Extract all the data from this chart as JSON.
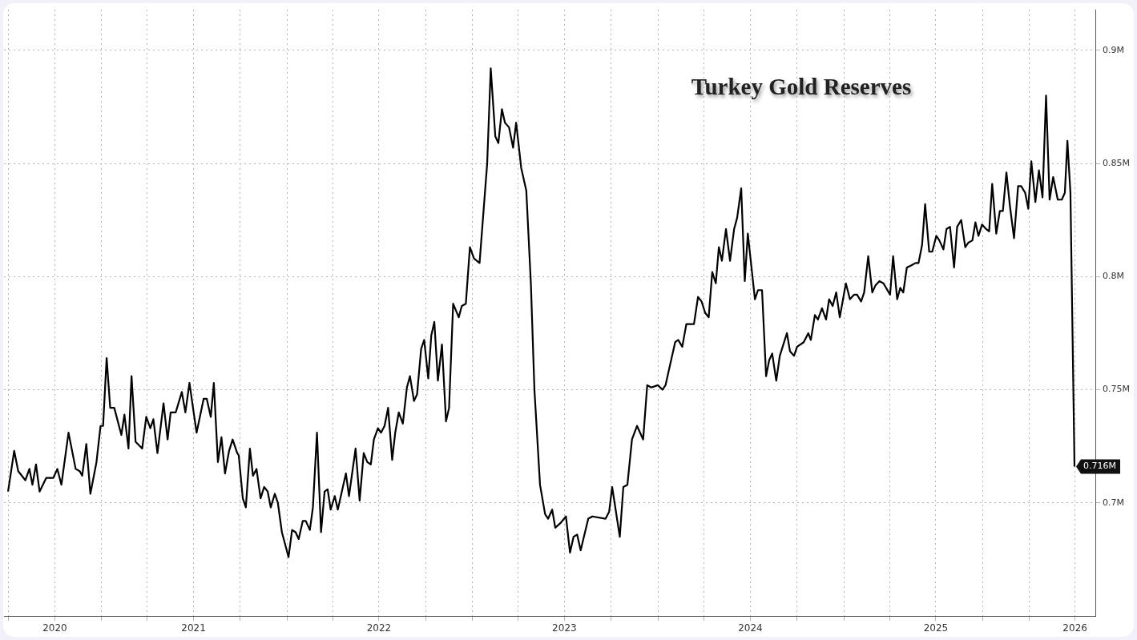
{
  "chart_data": {
    "type": "line",
    "title": "Turkey Gold Reserves",
    "x": [
      "2020-07-01",
      "2020-07-13",
      "2020-07-21",
      "2020-08-04",
      "2020-08-12",
      "2020-08-18",
      "2020-08-25",
      "2020-09-01",
      "2020-09-14",
      "2020-09-28",
      "2020-10-06",
      "2020-10-14",
      "2020-10-28",
      "2020-11-11",
      "2020-11-19",
      "2020-11-24",
      "2020-12-02",
      "2020-12-10",
      "2020-12-22",
      "2020-12-30",
      "2021-01-04",
      "2021-01-11",
      "2021-01-18",
      "2021-01-26",
      "2021-02-09",
      "2021-02-15",
      "2021-02-23",
      "2021-03-01",
      "2021-03-09",
      "2021-03-22",
      "2021-03-30",
      "2021-04-07",
      "2021-04-13",
      "2021-04-21",
      "2021-05-03",
      "2021-05-11",
      "2021-05-17",
      "2021-05-27",
      "2021-06-08",
      "2021-06-15",
      "2021-06-23",
      "2021-07-07",
      "2021-07-21",
      "2021-07-27",
      "2021-08-04",
      "2021-08-10",
      "2021-08-18",
      "2021-08-25",
      "2021-09-01",
      "2021-09-09",
      "2021-09-16",
      "2021-09-25",
      "2021-09-28",
      "2021-10-06",
      "2021-10-12",
      "2021-10-20",
      "2021-10-26",
      "2021-11-02",
      "2021-11-10",
      "2021-11-17",
      "2021-11-24",
      "2021-11-30",
      "2021-12-08",
      "2021-12-14",
      "2021-12-22",
      "2022-01-04",
      "2022-01-11",
      "2022-01-18",
      "2022-01-24",
      "2022-02-01",
      "2022-02-07",
      "2022-02-15",
      "2022-02-21",
      "2022-03-01",
      "2022-03-09",
      "2022-03-16",
      "2022-03-22",
      "2022-03-28",
      "2022-04-05",
      "2022-04-11",
      "2022-04-27",
      "2022-05-03",
      "2022-05-16",
      "2022-05-24",
      "2022-06-01",
      "2022-06-08",
      "2022-06-15",
      "2022-06-21",
      "2022-06-29",
      "2022-07-05",
      "2022-07-12",
      "2022-07-19",
      "2022-07-27",
      "2022-08-02",
      "2022-08-09",
      "2022-08-17",
      "2022-08-25",
      "2022-08-31",
      "2022-09-08",
      "2022-09-14",
      "2022-09-22",
      "2022-09-28",
      "2022-10-06",
      "2022-10-12",
      "2022-10-18",
      "2022-10-25",
      "2022-11-02",
      "2022-11-10",
      "2022-11-16",
      "2022-11-24",
      "2022-12-05",
      "2022-12-11",
      "2022-12-19",
      "2022-12-27",
      "2023-01-04",
      "2023-01-15",
      "2023-01-30",
      "2023-02-06",
      "2023-02-15",
      "2023-02-21",
      "2023-02-28",
      "2023-03-06",
      "2023-03-14",
      "2023-03-22",
      "2023-03-28",
      "2023-04-07",
      "2023-04-17",
      "2023-04-26",
      "2023-05-03",
      "2023-05-14",
      "2023-05-24",
      "2023-05-30",
      "2023-06-07",
      "2023-06-13",
      "2023-06-23",
      "2023-07-04",
      "2023-07-12",
      "2023-07-19",
      "2023-07-26",
      "2023-08-02",
      "2023-08-17",
      "2023-08-25",
      "2023-09-20",
      "2023-09-27",
      "2023-10-03",
      "2023-10-18",
      "2023-10-25",
      "2023-11-02",
      "2023-11-11",
      "2023-11-21",
      "2023-12-03",
      "2023-12-11",
      "2023-12-19",
      "2024-01-01",
      "2024-01-10",
      "2024-01-16",
      "2024-01-24",
      "2024-02-04",
      "2024-02-10",
      "2024-02-18",
      "2024-02-26",
      "2024-03-12",
      "2024-03-20",
      "2024-03-27",
      "2024-04-03",
      "2024-04-10",
      "2024-04-17",
      "2024-04-24",
      "2024-04-30",
      "2024-05-06",
      "2024-05-14",
      "2024-05-22",
      "2024-05-30",
      "2024-06-05",
      "2024-06-13",
      "2024-06-20",
      "2024-06-26",
      "2024-07-10",
      "2024-07-16",
      "2024-07-24",
      "2024-08-01",
      "2024-08-07",
      "2024-08-13",
      "2024-08-21",
      "2024-08-28",
      "2024-09-11",
      "2024-09-17",
      "2024-09-25",
      "2024-10-01",
      "2024-10-14",
      "2024-10-23",
      "2024-10-28",
      "2024-11-05",
      "2024-11-11",
      "2024-11-19",
      "2024-11-27",
      "2024-12-03",
      "2024-12-10",
      "2024-12-17",
      "2024-12-24",
      "2025-01-05",
      "2025-01-13",
      "2025-01-21",
      "2025-01-27",
      "2025-02-04",
      "2025-02-10",
      "2025-02-18",
      "2025-02-26",
      "2025-03-04",
      "2025-03-12",
      "2025-03-20",
      "2025-04-02",
      "2025-04-08",
      "2025-04-16",
      "2025-04-22",
      "2025-04-28",
      "2025-05-05",
      "2025-05-14",
      "2025-05-22",
      "2025-05-28",
      "2025-06-04",
      "2025-06-10",
      "2025-06-18",
      "2025-06-24",
      "2025-07-02",
      "2025-07-08",
      "2025-07-16",
      "2025-07-22",
      "2025-07-29",
      "2025-08-06",
      "2025-08-12",
      "2025-08-20",
      "2025-08-28",
      "2025-09-03",
      "2025-09-11",
      "2025-09-17",
      "2025-09-23",
      "2025-09-30",
      "2025-10-08",
      "2025-10-14",
      "2025-10-20",
      "2025-10-28",
      "2025-11-04",
      "2025-11-10",
      "2025-11-17",
      "2025-11-24",
      "2025-12-02",
      "2025-12-10",
      "2025-12-16",
      "2025-12-24",
      "2025-12-30",
      "2026-01-05",
      "2026-01-13",
      "2026-01-20",
      "2026-01-27",
      "2026-02-03",
      "2026-02-10",
      "2026-02-17",
      "2026-02-26",
      "2026-03-06",
      "2026-03-12",
      "2026-03-17",
      "2026-03-23",
      "2026-03-31"
    ],
    "series": [
      {
        "color": "#000000",
        "values": [
          0.705,
          0.723,
          0.714,
          0.71,
          0.715,
          0.708,
          0.717,
          0.705,
          0.711,
          0.711,
          0.715,
          0.708,
          0.731,
          0.715,
          0.714,
          0.712,
          0.726,
          0.704,
          0.718,
          0.734,
          0.734,
          0.764,
          0.742,
          0.742,
          0.73,
          0.739,
          0.724,
          0.756,
          0.727,
          0.724,
          0.738,
          0.733,
          0.737,
          0.722,
          0.744,
          0.728,
          0.74,
          0.74,
          0.749,
          0.74,
          0.753,
          0.731,
          0.746,
          0.746,
          0.738,
          0.753,
          0.718,
          0.729,
          0.713,
          0.723,
          0.728,
          0.722,
          0.721,
          0.702,
          0.698,
          0.724,
          0.712,
          0.715,
          0.702,
          0.707,
          0.705,
          0.698,
          0.704,
          0.7,
          0.687,
          0.676,
          0.688,
          0.687,
          0.684,
          0.692,
          0.692,
          0.688,
          0.698,
          0.731,
          0.687,
          0.705,
          0.706,
          0.697,
          0.703,
          0.697,
          0.713,
          0.703,
          0.724,
          0.701,
          0.722,
          0.718,
          0.717,
          0.728,
          0.733,
          0.731,
          0.734,
          0.742,
          0.719,
          0.731,
          0.74,
          0.735,
          0.751,
          0.756,
          0.745,
          0.748,
          0.768,
          0.772,
          0.755,
          0.774,
          0.78,
          0.754,
          0.77,
          0.736,
          0.742,
          0.788,
          0.782,
          0.787,
          0.788,
          0.813,
          0.808,
          0.806,
          0.85,
          0.892,
          0.862,
          0.859,
          0.874,
          0.868,
          0.866,
          0.857,
          0.868,
          0.848,
          0.838,
          0.797,
          0.75,
          0.708,
          0.695,
          0.693,
          0.697,
          0.689,
          0.691,
          0.694,
          0.678,
          0.685,
          0.686,
          0.679,
          0.693,
          0.694,
          0.693,
          0.696,
          0.707,
          0.685,
          0.707,
          0.708,
          0.728,
          0.734,
          0.728,
          0.752,
          0.751,
          0.752,
          0.75,
          0.752,
          0.76,
          0.771,
          0.772,
          0.769,
          0.779,
          0.779,
          0.791,
          0.789,
          0.784,
          0.782,
          0.802,
          0.797,
          0.813,
          0.807,
          0.821,
          0.807,
          0.821,
          0.826,
          0.839,
          0.798,
          0.819,
          0.79,
          0.794,
          0.794,
          0.756,
          0.763,
          0.766,
          0.754,
          0.765,
          0.775,
          0.767,
          0.765,
          0.769,
          0.771,
          0.775,
          0.772,
          0.783,
          0.781,
          0.786,
          0.781,
          0.79,
          0.787,
          0.793,
          0.782,
          0.797,
          0.79,
          0.792,
          0.792,
          0.789,
          0.793,
          0.809,
          0.793,
          0.796,
          0.798,
          0.797,
          0.792,
          0.809,
          0.79,
          0.795,
          0.793,
          0.804,
          0.805,
          0.806,
          0.806,
          0.814,
          0.832,
          0.811,
          0.811,
          0.818,
          0.816,
          0.812,
          0.821,
          0.822,
          0.804,
          0.822,
          0.825,
          0.813,
          0.815,
          0.816,
          0.824,
          0.818,
          0.823,
          0.821,
          0.82,
          0.841,
          0.819,
          0.829,
          0.829,
          0.846,
          0.831,
          0.817,
          0.84,
          0.84,
          0.837,
          0.83,
          0.851,
          0.833,
          0.847,
          0.835,
          0.88,
          0.834,
          0.844,
          0.834,
          0.834,
          0.837,
          0.86,
          0.837,
          0.716
        ]
      }
    ],
    "xlim": [
      "2020-06-23",
      "2026-05-11"
    ],
    "xticks": [
      {
        "value": "2020-07-01",
        "label": null
      },
      {
        "value": "2020-10-01",
        "label": "2020"
      },
      {
        "value": "2021-01-01",
        "label": null
      },
      {
        "value": "2021-04-01",
        "label": null
      },
      {
        "value": "2021-07-01",
        "label": "2021"
      },
      {
        "value": "2021-10-01",
        "label": null
      },
      {
        "value": "2022-01-01",
        "label": null
      },
      {
        "value": "2022-04-01",
        "label": null
      },
      {
        "value": "2022-07-01",
        "label": "2022"
      },
      {
        "value": "2022-10-01",
        "label": null
      },
      {
        "value": "2023-01-01",
        "label": null
      },
      {
        "value": "2023-04-01",
        "label": null
      },
      {
        "value": "2023-07-01",
        "label": "2023"
      },
      {
        "value": "2023-10-01",
        "label": null
      },
      {
        "value": "2024-01-01",
        "label": null
      },
      {
        "value": "2024-04-01",
        "label": null
      },
      {
        "value": "2024-07-01",
        "label": "2024"
      },
      {
        "value": "2024-10-01",
        "label": null
      },
      {
        "value": "2025-01-01",
        "label": null
      },
      {
        "value": "2025-04-01",
        "label": null
      },
      {
        "value": "2025-07-01",
        "label": "2025"
      },
      {
        "value": "2025-10-01",
        "label": null
      },
      {
        "value": "2026-01-01",
        "label": null
      },
      {
        "value": "2026-04-01",
        "label": "2026"
      }
    ],
    "ylim": [
      0.65,
      0.918
    ],
    "yticks": [
      {
        "value": 0.7,
        "label": "0.7M"
      },
      {
        "value": 0.75,
        "label": "0.75M"
      },
      {
        "value": 0.8,
        "label": "0.8M"
      },
      {
        "value": 0.85,
        "label": "0.85M"
      },
      {
        "value": 0.9,
        "label": "0.9M"
      }
    ],
    "annotations": [
      {
        "text": "0.716M",
        "x": "2026-03-31",
        "y": 0.716
      }
    ],
    "grid": true,
    "legend": false
  }
}
